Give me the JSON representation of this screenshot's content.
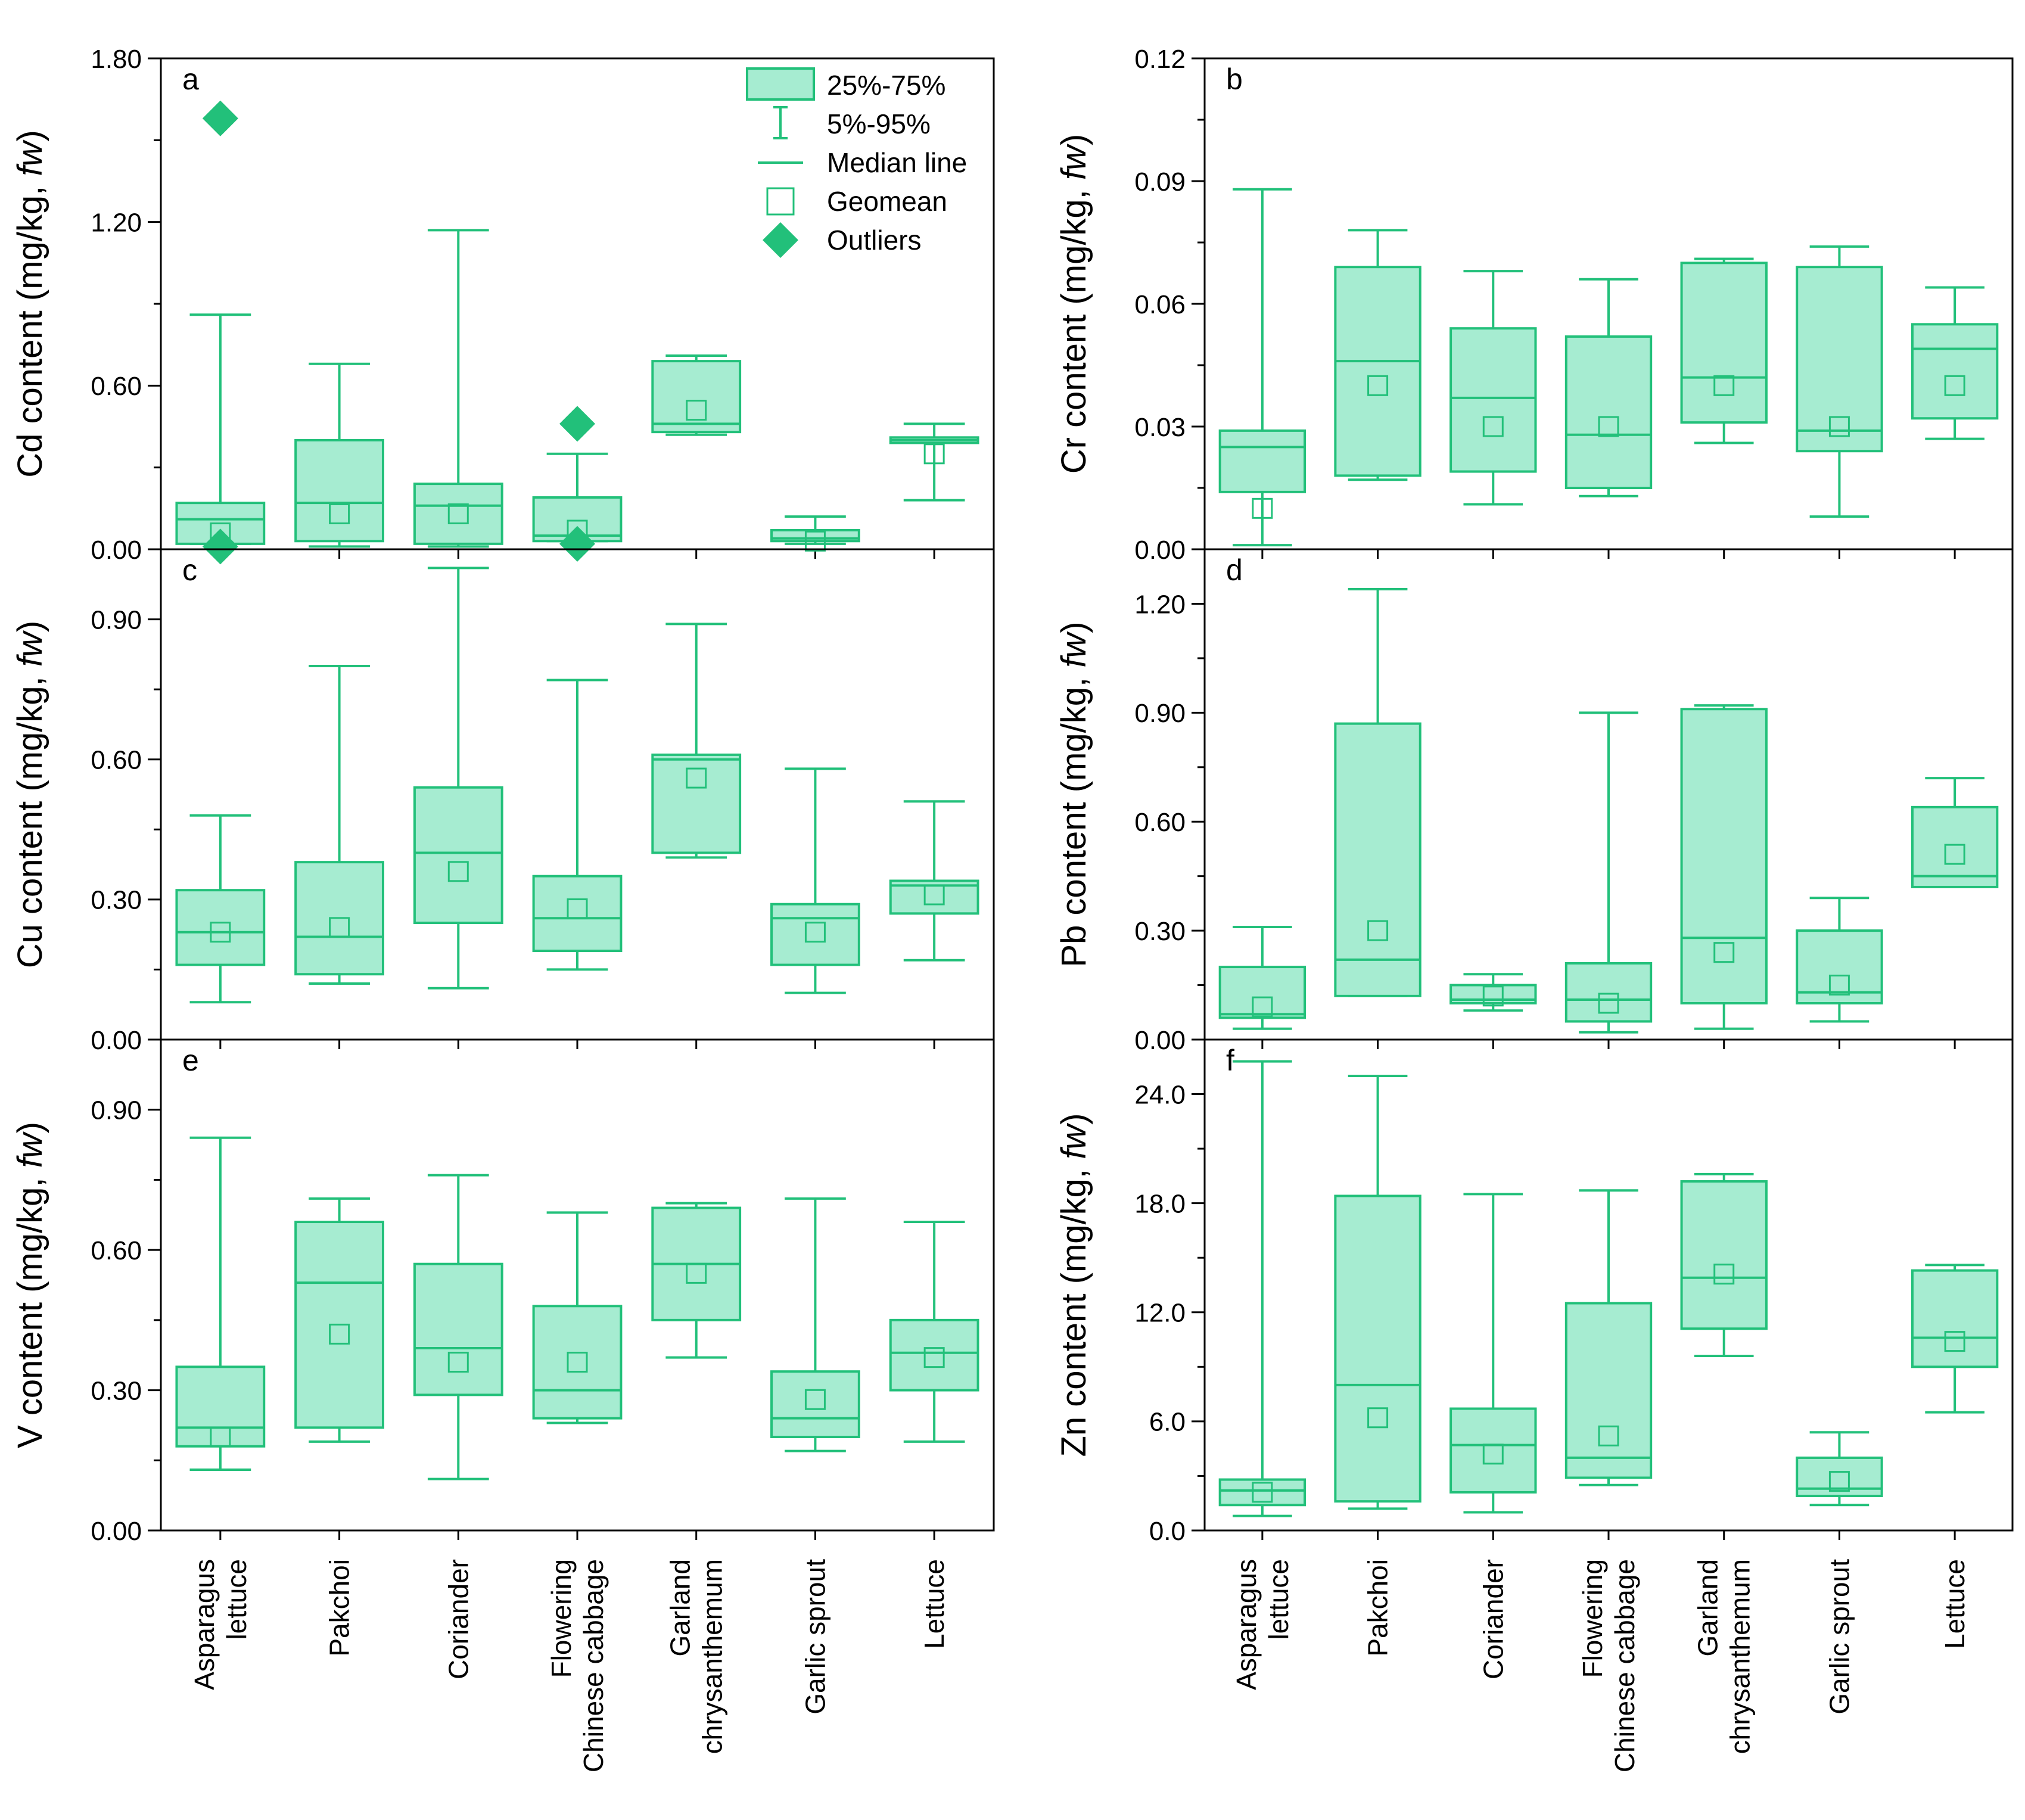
{
  "colors": {
    "stroke": "#22c07a",
    "fill": "#a6ecd1",
    "axis": "#000000"
  },
  "legend": {
    "box": "25%-75%",
    "whisker": "5%-95%",
    "median": "Median line",
    "geomean": "Geomean",
    "outliers": "Outliers"
  },
  "categories": [
    [
      "Asparagus",
      "lettuce"
    ],
    [
      "Pakchoi"
    ],
    [
      "Coriander"
    ],
    [
      "Flowering",
      "Chinese cabbage"
    ],
    [
      "Garland",
      "chrysanthemum"
    ],
    [
      "Garlic sprout"
    ],
    [
      "Lettuce"
    ]
  ],
  "chart_data": [
    {
      "type": "box",
      "panel": "a",
      "element": "Cd",
      "ylabel": "Cd content (mg/kg, ",
      "ylabel_italic": "fw",
      "ylabel_end": ")",
      "ylim": [
        0,
        1.8
      ],
      "yticks": [
        "0.00",
        "0.60",
        "1.20",
        "1.80"
      ],
      "tick_values": [
        0,
        0.6,
        1.2,
        1.8
      ],
      "boxes": [
        {
          "w5": 0.02,
          "q1": 0.02,
          "med": 0.11,
          "q3": 0.17,
          "w95": 0.86,
          "geo": 0.06,
          "outliers": [
            1.58,
            0.01
          ]
        },
        {
          "w5": 0.01,
          "q1": 0.03,
          "med": 0.17,
          "q3": 0.4,
          "w95": 0.68,
          "geo": 0.13,
          "outliers": []
        },
        {
          "w5": 0.01,
          "q1": 0.02,
          "med": 0.16,
          "q3": 0.24,
          "w95": 1.17,
          "geo": 0.13,
          "outliers": []
        },
        {
          "w5": 0.03,
          "q1": 0.03,
          "med": 0.05,
          "q3": 0.19,
          "w95": 0.35,
          "geo": 0.07,
          "outliers": [
            0.46,
            0.02
          ]
        },
        {
          "w5": 0.42,
          "q1": 0.43,
          "med": 0.46,
          "q3": 0.69,
          "w95": 0.71,
          "geo": 0.51,
          "outliers": []
        },
        {
          "w5": 0.02,
          "q1": 0.03,
          "med": 0.04,
          "q3": 0.07,
          "w95": 0.12,
          "geo": 0.03,
          "outliers": []
        },
        {
          "w5": 0.18,
          "q1": 0.39,
          "med": 0.4,
          "q3": 0.41,
          "w95": 0.46,
          "geo": 0.35,
          "outliers": []
        }
      ]
    },
    {
      "type": "box",
      "panel": "b",
      "element": "Cr",
      "ylabel": "Cr content (mg/kg, ",
      "ylabel_italic": "fw",
      "ylabel_end": ")",
      "ylim": [
        0,
        0.12
      ],
      "yticks": [
        "0.00",
        "0.03",
        "0.06",
        "0.09",
        "0.12"
      ],
      "tick_values": [
        0,
        0.03,
        0.06,
        0.09,
        0.12
      ],
      "boxes": [
        {
          "w5": 0.001,
          "q1": 0.014,
          "med": 0.025,
          "q3": 0.029,
          "w95": 0.088,
          "geo": 0.01,
          "outliers": []
        },
        {
          "w5": 0.017,
          "q1": 0.018,
          "med": 0.046,
          "q3": 0.069,
          "w95": 0.078,
          "geo": 0.04,
          "outliers": []
        },
        {
          "w5": 0.011,
          "q1": 0.019,
          "med": 0.037,
          "q3": 0.054,
          "w95": 0.068,
          "geo": 0.03,
          "outliers": []
        },
        {
          "w5": 0.013,
          "q1": 0.015,
          "med": 0.028,
          "q3": 0.052,
          "w95": 0.066,
          "geo": 0.03,
          "outliers": []
        },
        {
          "w5": 0.026,
          "q1": 0.031,
          "med": 0.042,
          "q3": 0.07,
          "w95": 0.071,
          "geo": 0.04,
          "outliers": []
        },
        {
          "w5": 0.008,
          "q1": 0.024,
          "med": 0.029,
          "q3": 0.069,
          "w95": 0.074,
          "geo": 0.03,
          "outliers": []
        },
        {
          "w5": 0.027,
          "q1": 0.032,
          "med": 0.049,
          "q3": 0.055,
          "w95": 0.064,
          "geo": 0.04,
          "outliers": []
        }
      ]
    },
    {
      "type": "box",
      "panel": "c",
      "element": "Cu",
      "ylabel": "Cu content (mg/kg, ",
      "ylabel_italic": "fw",
      "ylabel_end": ")",
      "ylim": [
        0,
        1.05
      ],
      "yticks": [
        "0.00",
        "0.30",
        "0.60",
        "0.90"
      ],
      "tick_values": [
        0,
        0.3,
        0.6,
        0.9
      ],
      "boxes": [
        {
          "w5": 0.08,
          "q1": 0.16,
          "med": 0.23,
          "q3": 0.32,
          "w95": 0.48,
          "geo": 0.23,
          "outliers": []
        },
        {
          "w5": 0.12,
          "q1": 0.14,
          "med": 0.22,
          "q3": 0.38,
          "w95": 0.8,
          "geo": 0.24,
          "outliers": []
        },
        {
          "w5": 0.11,
          "q1": 0.25,
          "med": 0.4,
          "q3": 0.54,
          "w95": 1.01,
          "geo": 0.36,
          "outliers": []
        },
        {
          "w5": 0.15,
          "q1": 0.19,
          "med": 0.26,
          "q3": 0.35,
          "w95": 0.77,
          "geo": 0.28,
          "outliers": []
        },
        {
          "w5": 0.39,
          "q1": 0.4,
          "med": 0.6,
          "q3": 0.61,
          "w95": 0.89,
          "geo": 0.56,
          "outliers": []
        },
        {
          "w5": 0.1,
          "q1": 0.16,
          "med": 0.26,
          "q3": 0.29,
          "w95": 0.58,
          "geo": 0.23,
          "outliers": []
        },
        {
          "w5": 0.17,
          "q1": 0.27,
          "med": 0.33,
          "q3": 0.34,
          "w95": 0.51,
          "geo": 0.31,
          "outliers": []
        }
      ]
    },
    {
      "type": "box",
      "panel": "d",
      "element": "Pb",
      "ylabel": "Pb content (mg/kg, ",
      "ylabel_italic": "fw",
      "ylabel_end": ")",
      "ylim": [
        0,
        1.35
      ],
      "yticks": [
        "0.00",
        "0.30",
        "0.60",
        "0.90",
        "1.20"
      ],
      "tick_values": [
        0,
        0.3,
        0.6,
        0.9,
        1.2
      ],
      "boxes": [
        {
          "w5": 0.03,
          "q1": 0.06,
          "med": 0.07,
          "q3": 0.2,
          "w95": 0.31,
          "geo": 0.09,
          "outliers": []
        },
        {
          "w5": 0.12,
          "q1": 0.12,
          "med": 0.22,
          "q3": 0.87,
          "w95": 1.24,
          "geo": 0.3,
          "outliers": []
        },
        {
          "w5": 0.08,
          "q1": 0.1,
          "med": 0.11,
          "q3": 0.15,
          "w95": 0.18,
          "geo": 0.12,
          "outliers": []
        },
        {
          "w5": 0.02,
          "q1": 0.05,
          "med": 0.11,
          "q3": 0.21,
          "w95": 0.9,
          "geo": 0.1,
          "outliers": []
        },
        {
          "w5": 0.03,
          "q1": 0.1,
          "med": 0.28,
          "q3": 0.91,
          "w95": 0.92,
          "geo": 0.24,
          "outliers": []
        },
        {
          "w5": 0.05,
          "q1": 0.1,
          "med": 0.13,
          "q3": 0.3,
          "w95": 0.39,
          "geo": 0.15,
          "outliers": []
        },
        {
          "w5": 0.42,
          "q1": 0.42,
          "med": 0.45,
          "q3": 0.64,
          "w95": 0.72,
          "geo": 0.51,
          "outliers": []
        }
      ]
    },
    {
      "type": "box",
      "panel": "e",
      "element": "V",
      "ylabel": "V content (mg/kg, ",
      "ylabel_italic": "fw",
      "ylabel_end": ")",
      "ylim": [
        0,
        1.05
      ],
      "yticks": [
        "0.00",
        "0.30",
        "0.60",
        "0.90"
      ],
      "tick_values": [
        0,
        0.3,
        0.6,
        0.9
      ],
      "boxes": [
        {
          "w5": 0.13,
          "q1": 0.18,
          "med": 0.22,
          "q3": 0.35,
          "w95": 0.84,
          "geo": 0.2,
          "outliers": []
        },
        {
          "w5": 0.19,
          "q1": 0.22,
          "med": 0.53,
          "q3": 0.66,
          "w95": 0.71,
          "geo": 0.42,
          "outliers": []
        },
        {
          "w5": 0.11,
          "q1": 0.29,
          "med": 0.39,
          "q3": 0.57,
          "w95": 0.76,
          "geo": 0.36,
          "outliers": []
        },
        {
          "w5": 0.23,
          "q1": 0.24,
          "med": 0.3,
          "q3": 0.48,
          "w95": 0.68,
          "geo": 0.36,
          "outliers": []
        },
        {
          "w5": 0.37,
          "q1": 0.45,
          "med": 0.57,
          "q3": 0.69,
          "w95": 0.7,
          "geo": 0.55,
          "outliers": []
        },
        {
          "w5": 0.17,
          "q1": 0.2,
          "med": 0.24,
          "q3": 0.34,
          "w95": 0.71,
          "geo": 0.28,
          "outliers": []
        },
        {
          "w5": 0.19,
          "q1": 0.3,
          "med": 0.38,
          "q3": 0.45,
          "w95": 0.66,
          "geo": 0.37,
          "outliers": []
        }
      ]
    },
    {
      "type": "box",
      "panel": "f",
      "element": "Zn",
      "ylabel": "Zn content (mg/kg, ",
      "ylabel_italic": "fw",
      "ylabel_end": ")",
      "ylim": [
        0,
        27
      ],
      "yticks": [
        "0.0",
        "6.0",
        "12.0",
        "18.0",
        "24.0"
      ],
      "tick_values": [
        0,
        6,
        12,
        18,
        24
      ],
      "boxes": [
        {
          "w5": 0.8,
          "q1": 1.4,
          "med": 2.2,
          "q3": 2.8,
          "w95": 25.8,
          "geo": 2.1,
          "outliers": []
        },
        {
          "w5": 1.2,
          "q1": 1.6,
          "med": 8.0,
          "q3": 18.4,
          "w95": 25.0,
          "geo": 6.2,
          "outliers": []
        },
        {
          "w5": 1.0,
          "q1": 2.1,
          "med": 4.7,
          "q3": 6.7,
          "w95": 18.5,
          "geo": 4.2,
          "outliers": []
        },
        {
          "w5": 2.5,
          "q1": 2.9,
          "med": 4.0,
          "q3": 12.5,
          "w95": 18.7,
          "geo": 5.2,
          "outliers": []
        },
        {
          "w5": 9.6,
          "q1": 11.1,
          "med": 13.9,
          "q3": 19.2,
          "w95": 19.6,
          "geo": 14.1,
          "outliers": []
        },
        {
          "w5": 1.4,
          "q1": 1.9,
          "med": 2.3,
          "q3": 4.0,
          "w95": 5.4,
          "geo": 2.7,
          "outliers": []
        },
        {
          "w5": 6.5,
          "q1": 9.0,
          "med": 10.6,
          "q3": 14.3,
          "w95": 14.6,
          "geo": 10.4,
          "outliers": []
        }
      ]
    }
  ]
}
